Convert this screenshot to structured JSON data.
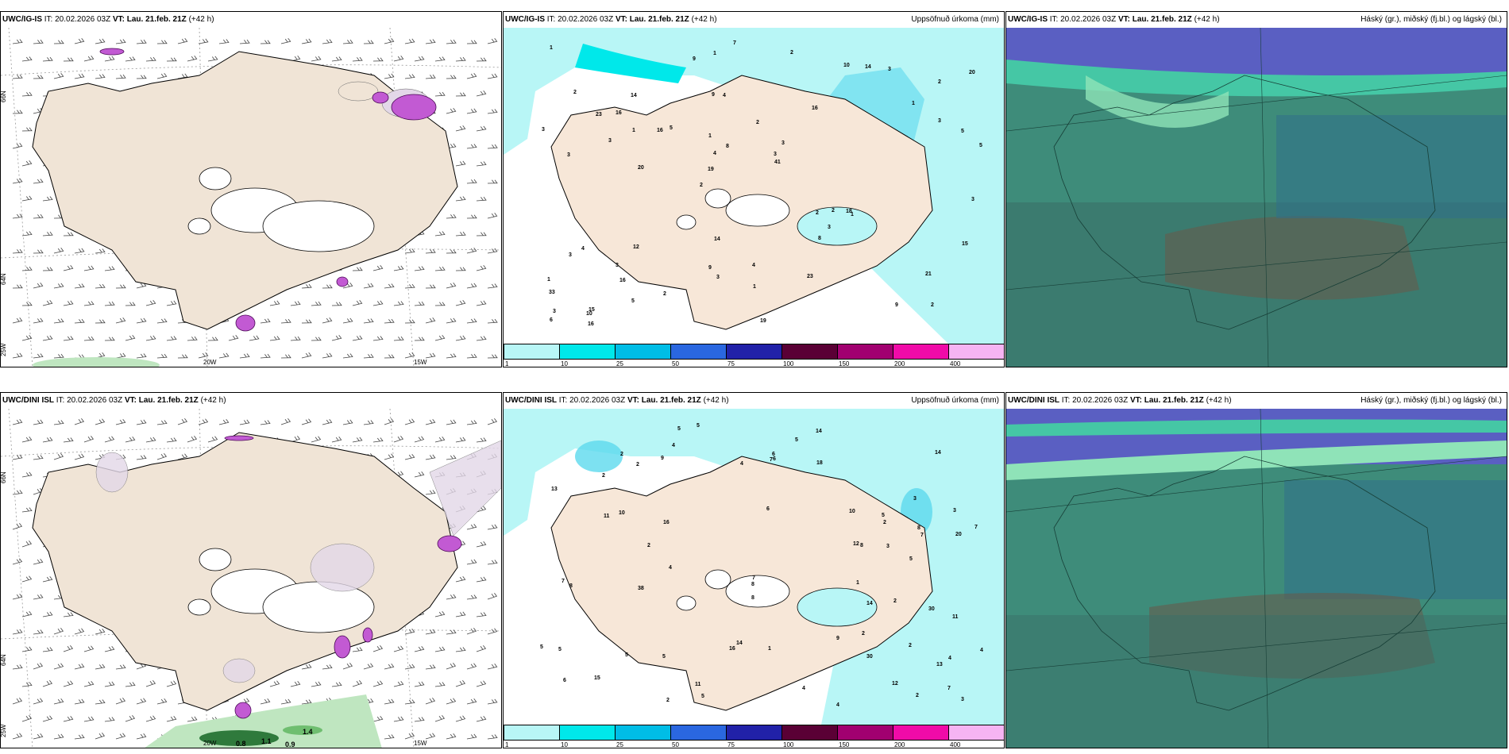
{
  "panels": {
    "r1c1": {
      "model": "UWC/IG-IS",
      "it_label": "IT:",
      "it": "20.02.2026 03Z",
      "vt_label": "VT:",
      "vt": "Lau. 21.feb. 21Z",
      "lead": "(+42 h)",
      "right": ""
    },
    "r1c2": {
      "model": "UWC/IG-IS",
      "it_label": "IT:",
      "it": "20.02.2026 03Z",
      "vt_label": "VT:",
      "vt": "Lau. 21.feb. 21Z",
      "lead": "(+42 h)",
      "right": "Uppsöfnuð úrkoma (mm)"
    },
    "r1c3": {
      "model": "UWC/IG-IS",
      "it_label": "IT:",
      "it": "20.02.2026 03Z",
      "vt_label": "VT:",
      "vt": "Lau. 21.feb. 21Z",
      "lead": "(+42 h)",
      "right": "Háský (gr.), miðský (fj.bl.) og lágský (bl.)"
    },
    "r2c1": {
      "model": "UWC/DINI ISL",
      "it_label": "IT:",
      "it": "20.02.2026 03Z",
      "vt_label": "VT:",
      "vt": "Lau. 21.feb. 21Z",
      "lead": "(+42 h)",
      "right": ""
    },
    "r2c2": {
      "model": "UWC/DINI ISL",
      "it_label": "IT:",
      "it": "20.02.2026 03Z",
      "vt_label": "VT:",
      "vt": "Lau. 21.feb. 21Z",
      "lead": "(+42 h)",
      "right": "Uppsöfnuð úrkoma (mm)"
    },
    "r2c3": {
      "model": "UWC/DINI ISL",
      "it_label": "IT:",
      "it": "20.02.2026 03Z",
      "vt_label": "VT:",
      "vt": "Lau. 21.feb. 21Z",
      "lead": "(+42 h)",
      "right": "Háský (gr.), miðský (fj.bl.) og lágský (bl.)"
    }
  },
  "axes": {
    "lon_20w": "20W",
    "lon_15w": "15W",
    "lat_66n": "66N",
    "lat_64n": "64N",
    "lat_25w": "25W"
  },
  "colorbar": {
    "ticks": [
      "1",
      "10",
      "25",
      "50",
      "75",
      "100",
      "150",
      "200",
      "400"
    ],
    "colors": [
      "#b8f6f6",
      "#00e8ea",
      "#00bde6",
      "#2a67e0",
      "#2121a8",
      "#5a0035",
      "#a10070",
      "#f00ba8",
      "#f6b4f3"
    ]
  },
  "precip_top": [
    "2",
    "3",
    "2",
    "2",
    "16",
    "15",
    "9",
    "2",
    "4",
    "5",
    "33",
    "16",
    "4",
    "3",
    "1",
    "2",
    "1",
    "5",
    "2",
    "3",
    "19",
    "9",
    "4",
    "14",
    "10",
    "12",
    "9",
    "21",
    "18",
    "19",
    "16",
    "3",
    "8",
    "5",
    "5",
    "3",
    "3",
    "3",
    "41",
    "3",
    "1",
    "20",
    "3",
    "23",
    "3",
    "16",
    "6",
    "4",
    "3",
    "7",
    "20",
    "3",
    "16",
    "14",
    "10",
    "2",
    "9",
    "8",
    "15",
    "14",
    "2",
    "2",
    "1",
    "1",
    "1",
    "23",
    "3",
    "1",
    "1"
  ],
  "precip_bot": [
    "2",
    "3",
    "4",
    "6",
    "6",
    "4",
    "8",
    "5",
    "14",
    "10",
    "20",
    "13",
    "5",
    "5",
    "5",
    "2",
    "13",
    "9",
    "14",
    "7",
    "7",
    "8",
    "4",
    "12",
    "11",
    "16",
    "5",
    "18",
    "10",
    "4",
    "38",
    "30",
    "2",
    "8",
    "30",
    "12",
    "8",
    "4",
    "2",
    "4",
    "2",
    "3",
    "7",
    "2",
    "11",
    "14",
    "15",
    "14",
    "16",
    "2",
    "5",
    "8",
    "6",
    "7",
    "9",
    "1",
    "5",
    "2",
    "4",
    "6",
    "5",
    "2",
    "3",
    "1",
    "2",
    "7",
    "5",
    "7",
    "5",
    "11",
    "3"
  ],
  "lows_bot": [
    "0.8",
    "1.1",
    "0.9",
    "1.4"
  ]
}
